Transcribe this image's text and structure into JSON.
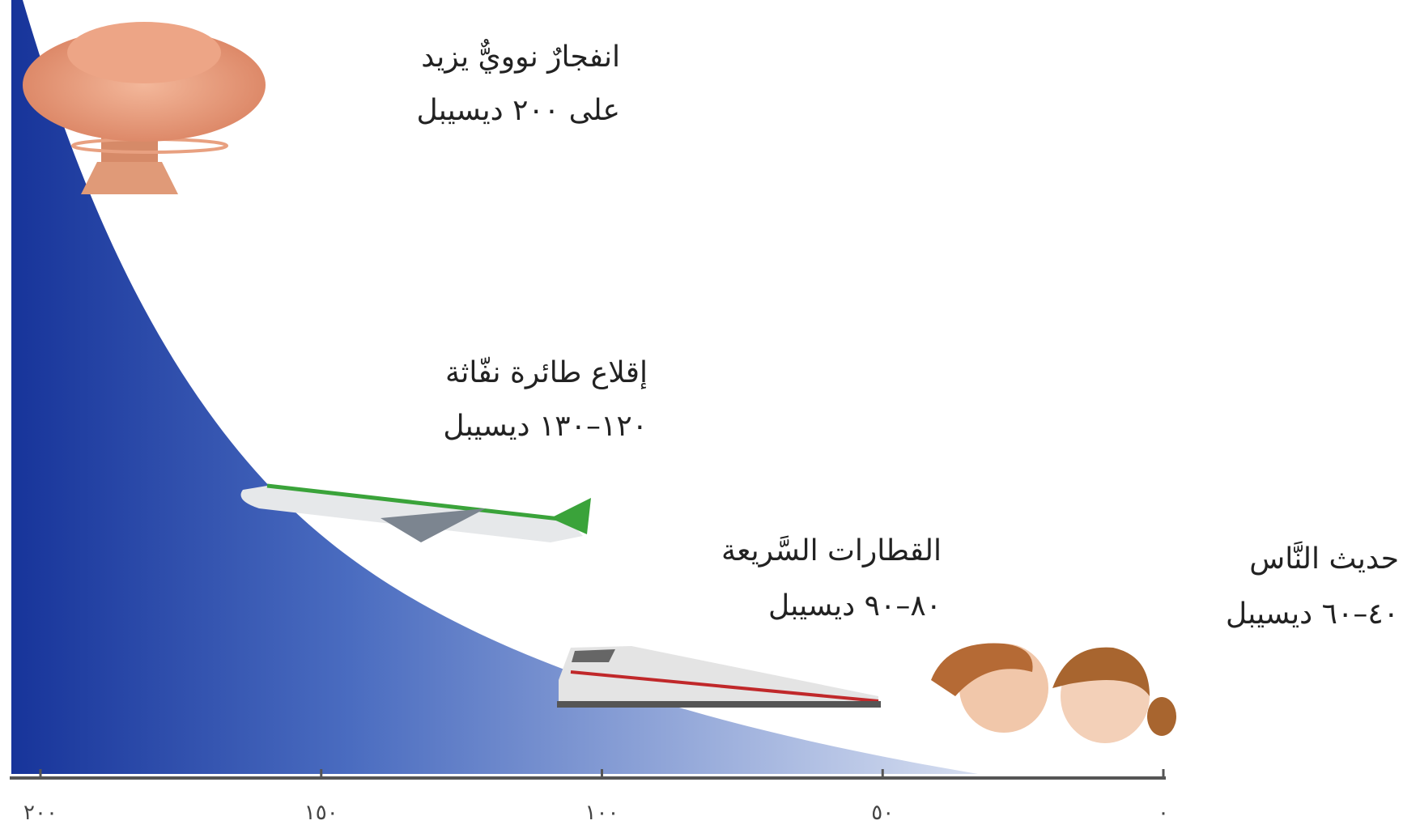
{
  "chart_data": {
    "type": "scale",
    "xlim": [
      200,
      0
    ],
    "xticks": [
      {
        "value": 200,
        "label": "٢٠٠"
      },
      {
        "value": 150,
        "label": "١٥٠"
      },
      {
        "value": 100,
        "label": "١٠٠"
      },
      {
        "value": 50,
        "label": "٥٠"
      },
      {
        "value": 0,
        "label": "٠"
      }
    ],
    "annotations": [
      {
        "title": "انفجارٌ نوويٌّ يزيد",
        "detail": "على ٢٠٠ ديسيبل"
      },
      {
        "title": "إقلاع طائرة نفّاثة",
        "detail": "١٢٠–١٣٠ ديسيبل"
      },
      {
        "title": "القطارات السَّريعة",
        "detail": "٨٠–٩٠ ديسيبل"
      },
      {
        "title": "حديث النَّاس",
        "detail": "٤٠–٦٠ ديسيبل"
      }
    ]
  }
}
